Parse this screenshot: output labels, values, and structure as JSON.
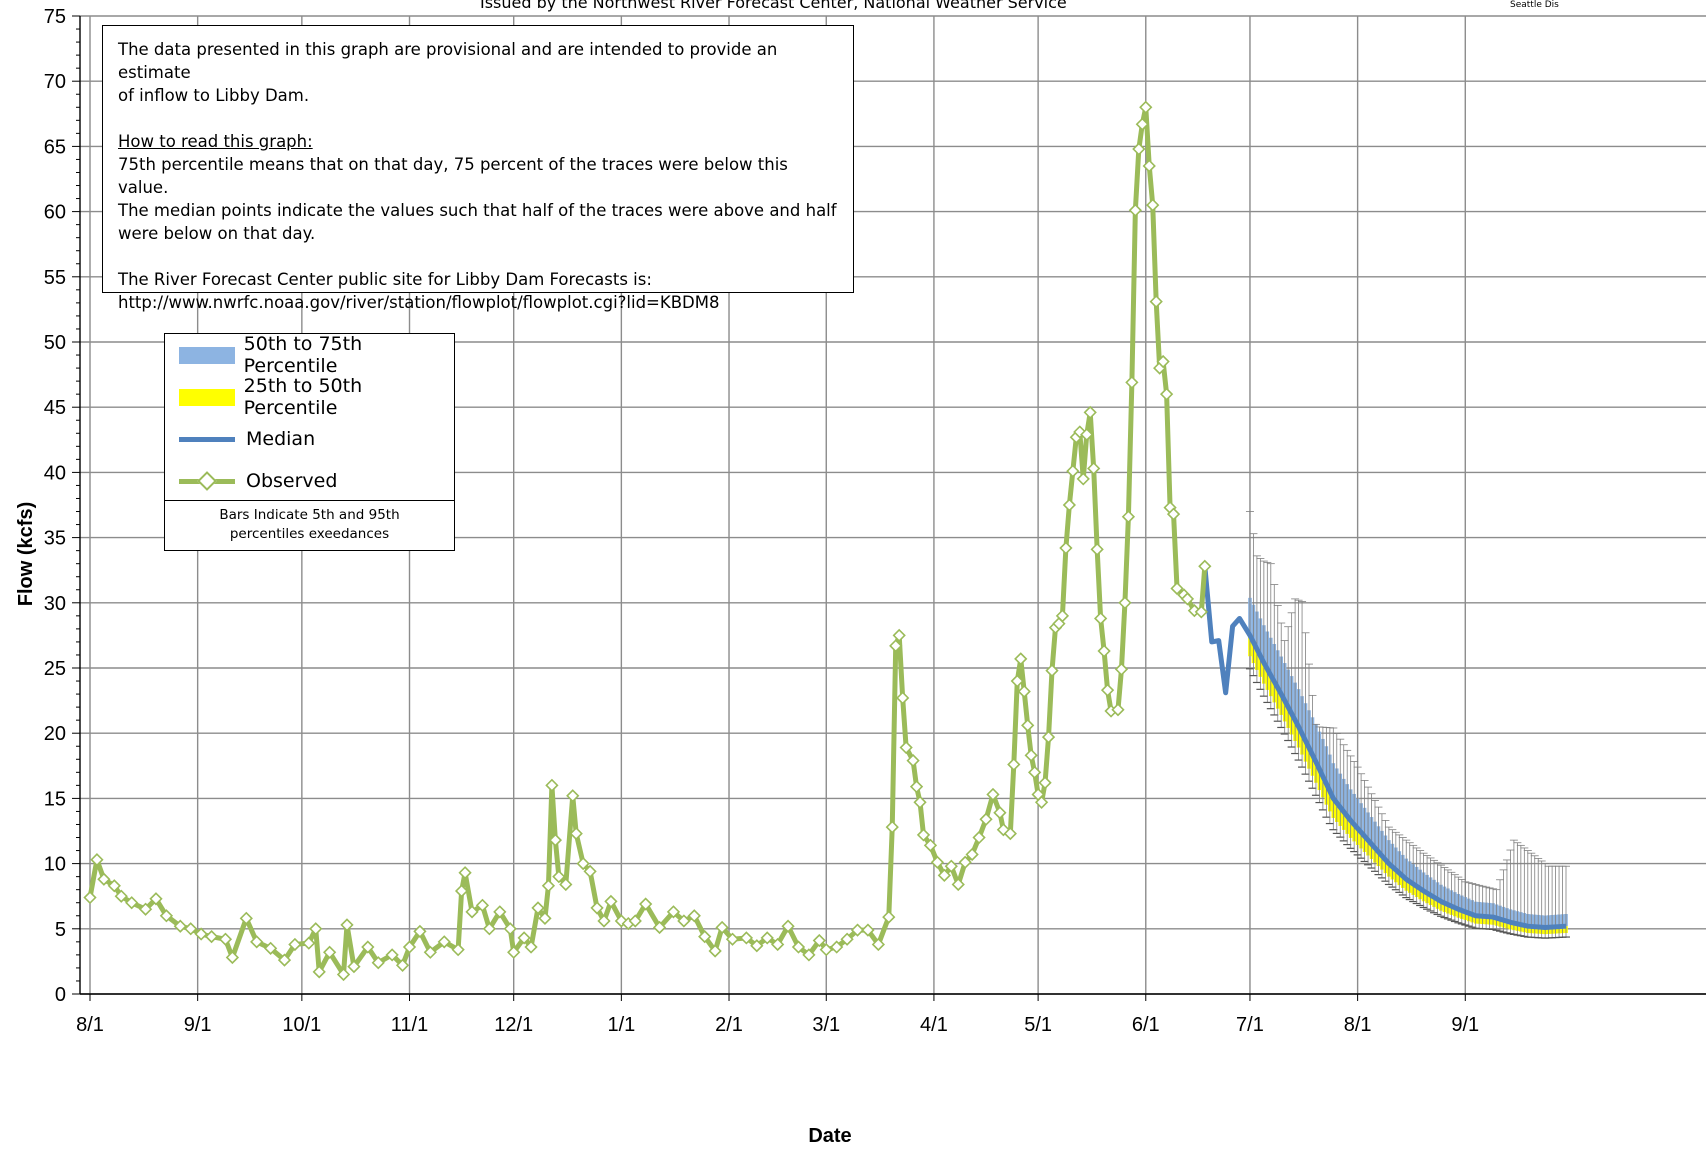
{
  "header": {
    "subtitle": "Issued by the Northwest River Forecast Center, National Weather Service",
    "corner": "Seattle Dis"
  },
  "note": {
    "line1": "The data presented in this graph are provisional and are intended to provide an estimate",
    "line2": "of inflow to Libby Dam.",
    "howto_heading": "How to read this graph:",
    "howto1": "75th percentile means that on that day, 75 percent of the traces were below this value.",
    "howto2": "The median points indicate the values such that half of  the traces were above and half",
    "howto3": "were below on that day.",
    "site1": "The River Forecast Center public site for Libby Dam Forecasts is:",
    "site2": "http://www.nwrfc.noaa.gov/river/station/flowplot/flowplot.cgi?lid=KBDM8"
  },
  "legend": {
    "items": [
      {
        "label": "50th to 75th Percentile"
      },
      {
        "label": "25th to 50th Percentile"
      },
      {
        "label": "Median"
      },
      {
        "label": "Observed"
      }
    ],
    "bars_note_1": "Bars Indicate 5th and 95th",
    "bars_note_2": "percentiles exeedances"
  },
  "colors": {
    "observed": "#9bbb59",
    "median": "#4f81bd",
    "band_upper": "#8db4e2",
    "band_lower": "#ffff00",
    "whisker": "#7f7f7f",
    "grid": "#8c8c8c"
  },
  "chart_data": {
    "type": "line",
    "xlabel": "Date",
    "ylabel": "Flow (kcfs)",
    "ylim": [
      0,
      75
    ],
    "yticks": [
      0,
      5,
      10,
      15,
      20,
      25,
      30,
      35,
      40,
      45,
      50,
      55,
      60,
      65,
      70,
      75
    ],
    "xtick_labels": [
      "8/1",
      "9/1",
      "10/1",
      "11/1",
      "12/1",
      "1/1",
      "2/1",
      "3/1",
      "4/1",
      "5/1",
      "6/1",
      "7/1",
      "8/1",
      "9/1"
    ],
    "grid": true,
    "observed": {
      "name": "Observed",
      "points": [
        [
          "8/1",
          7.4
        ],
        [
          "8/3",
          10.3
        ],
        [
          "8/5",
          8.8
        ],
        [
          "8/8",
          8.3
        ],
        [
          "8/10",
          7.5
        ],
        [
          "8/13",
          7.0
        ],
        [
          "8/17",
          6.5
        ],
        [
          "8/20",
          7.3
        ],
        [
          "8/23",
          6.0
        ],
        [
          "8/27",
          5.2
        ],
        [
          "8/30",
          5.0
        ],
        [
          "9/2",
          4.6
        ],
        [
          "9/5",
          4.4
        ],
        [
          "9/9",
          4.2
        ],
        [
          "9/11",
          2.8
        ],
        [
          "9/15",
          5.8
        ],
        [
          "9/18",
          4.0
        ],
        [
          "9/22",
          3.5
        ],
        [
          "9/26",
          2.6
        ],
        [
          "9/29",
          3.8
        ],
        [
          "10/3",
          3.9
        ],
        [
          "10/5",
          5.0
        ],
        [
          "10/6",
          1.7
        ],
        [
          "10/9",
          3.2
        ],
        [
          "10/13",
          1.5
        ],
        [
          "10/14",
          5.3
        ],
        [
          "10/16",
          2.1
        ],
        [
          "10/20",
          3.6
        ],
        [
          "10/23",
          2.4
        ],
        [
          "10/27",
          3.0
        ],
        [
          "10/30",
          2.2
        ],
        [
          "11/1",
          3.6
        ],
        [
          "11/4",
          4.8
        ],
        [
          "11/7",
          3.2
        ],
        [
          "11/11",
          4.0
        ],
        [
          "11/15",
          3.4
        ],
        [
          "11/16",
          7.9
        ],
        [
          "11/17",
          9.3
        ],
        [
          "11/19",
          6.3
        ],
        [
          "11/22",
          6.8
        ],
        [
          "11/24",
          5.0
        ],
        [
          "11/27",
          6.3
        ],
        [
          "11/30",
          5.0
        ],
        [
          "12/1",
          3.2
        ],
        [
          "12/4",
          4.3
        ],
        [
          "12/6",
          3.6
        ],
        [
          "12/8",
          6.6
        ],
        [
          "12/10",
          5.8
        ],
        [
          "12/11",
          8.3
        ],
        [
          "12/12",
          16.0
        ],
        [
          "12/13",
          11.8
        ],
        [
          "12/14",
          9.0
        ],
        [
          "12/16",
          8.4
        ],
        [
          "12/18",
          15.2
        ],
        [
          "12/19",
          12.3
        ],
        [
          "12/21",
          10.0
        ],
        [
          "12/23",
          9.4
        ],
        [
          "12/25",
          6.6
        ],
        [
          "12/27",
          5.6
        ],
        [
          "12/29",
          7.1
        ],
        [
          "1/1",
          5.6
        ],
        [
          "1/3",
          5.4
        ],
        [
          "1/5",
          5.6
        ],
        [
          "1/8",
          6.9
        ],
        [
          "1/12",
          5.1
        ],
        [
          "1/16",
          6.3
        ],
        [
          "1/19",
          5.6
        ],
        [
          "1/22",
          6.0
        ],
        [
          "1/25",
          4.4
        ],
        [
          "1/28",
          3.3
        ],
        [
          "1/30",
          5.1
        ],
        [
          "2/2",
          4.2
        ],
        [
          "2/6",
          4.3
        ],
        [
          "2/9",
          3.7
        ],
        [
          "2/12",
          4.3
        ],
        [
          "2/15",
          3.8
        ],
        [
          "2/18",
          5.2
        ],
        [
          "2/21",
          3.6
        ],
        [
          "2/24",
          3.0
        ],
        [
          "2/27",
          4.1
        ],
        [
          "3/1",
          3.4
        ],
        [
          "3/4",
          3.6
        ],
        [
          "3/7",
          4.2
        ],
        [
          "3/10",
          4.9
        ],
        [
          "3/13",
          4.9
        ],
        [
          "3/16",
          3.8
        ],
        [
          "3/19",
          5.9
        ],
        [
          "3/20",
          12.8
        ],
        [
          "3/21",
          26.7
        ],
        [
          "3/22",
          27.5
        ],
        [
          "3/23",
          22.7
        ],
        [
          "3/24",
          18.9
        ],
        [
          "3/26",
          17.9
        ],
        [
          "3/27",
          15.9
        ],
        [
          "3/28",
          14.7
        ],
        [
          "3/29",
          12.2
        ],
        [
          "3/31",
          11.4
        ],
        [
          "4/2",
          10.1
        ],
        [
          "4/4",
          9.1
        ],
        [
          "4/6",
          9.8
        ],
        [
          "4/8",
          8.4
        ],
        [
          "4/10",
          10.1
        ],
        [
          "4/12",
          10.7
        ],
        [
          "4/14",
          12.0
        ],
        [
          "4/16",
          13.4
        ],
        [
          "4/18",
          15.3
        ],
        [
          "4/20",
          13.9
        ],
        [
          "4/21",
          12.6
        ],
        [
          "4/23",
          12.3
        ],
        [
          "4/24",
          17.6
        ],
        [
          "4/25",
          24.0
        ],
        [
          "4/26",
          25.7
        ],
        [
          "4/27",
          23.2
        ],
        [
          "4/28",
          20.6
        ],
        [
          "4/29",
          18.3
        ],
        [
          "4/30",
          17.0
        ],
        [
          "5/1",
          15.3
        ],
        [
          "5/2",
          14.7
        ],
        [
          "5/3",
          16.2
        ],
        [
          "5/4",
          19.7
        ],
        [
          "5/5",
          24.8
        ],
        [
          "5/6",
          28.1
        ],
        [
          "5/7",
          28.4
        ],
        [
          "5/8",
          29.0
        ],
        [
          "5/9",
          34.2
        ],
        [
          "5/10",
          37.5
        ],
        [
          "5/11",
          40.1
        ],
        [
          "5/12",
          42.7
        ],
        [
          "5/13",
          43.1
        ],
        [
          "5/14",
          39.5
        ],
        [
          "5/15",
          42.9
        ],
        [
          "5/16",
          44.6
        ],
        [
          "5/17",
          40.3
        ],
        [
          "5/18",
          34.1
        ],
        [
          "5/19",
          28.8
        ],
        [
          "5/20",
          26.3
        ],
        [
          "5/21",
          23.3
        ],
        [
          "5/22",
          21.7
        ],
        [
          "5/24",
          21.8
        ],
        [
          "5/25",
          24.9
        ],
        [
          "5/26",
          30.0
        ],
        [
          "5/27",
          36.6
        ],
        [
          "5/28",
          46.9
        ],
        [
          "5/29",
          60.1
        ],
        [
          "5/30",
          64.8
        ],
        [
          "5/31",
          66.7
        ],
        [
          "6/1",
          68.0
        ],
        [
          "6/2",
          63.5
        ],
        [
          "6/3",
          60.5
        ],
        [
          "6/4",
          53.1
        ],
        [
          "6/5",
          48.0
        ],
        [
          "6/6",
          48.5
        ],
        [
          "6/7",
          46.0
        ],
        [
          "6/8",
          37.3
        ],
        [
          "6/9",
          36.8
        ],
        [
          "6/10",
          31.1
        ],
        [
          "6/12",
          30.6
        ],
        [
          "6/13",
          30.3
        ],
        [
          "6/15",
          29.4
        ],
        [
          "6/17",
          29.3
        ],
        [
          "6/18",
          32.8
        ]
      ]
    },
    "median": {
      "name": "Median",
      "points": [
        [
          "6/18",
          32.8
        ],
        [
          "6/20",
          27.0
        ],
        [
          "6/22",
          27.1
        ],
        [
          "6/24",
          23.1
        ],
        [
          "6/26",
          28.2
        ],
        [
          "6/28",
          28.8
        ],
        [
          "7/1",
          27.5
        ],
        [
          "7/5",
          25.4
        ],
        [
          "7/10",
          23.0
        ],
        [
          "7/15",
          20.5
        ],
        [
          "7/20",
          17.8
        ],
        [
          "7/25",
          15.0
        ],
        [
          "7/30",
          13.3
        ],
        [
          "8/5",
          11.5
        ],
        [
          "8/10",
          10.0
        ],
        [
          "8/15",
          8.8
        ],
        [
          "8/20",
          7.9
        ],
        [
          "8/25",
          7.1
        ],
        [
          "8/30",
          6.5
        ],
        [
          "9/4",
          6.0
        ],
        [
          "9/9",
          5.9
        ],
        [
          "9/14",
          5.5
        ],
        [
          "9/19",
          5.2
        ],
        [
          "9/24",
          5.1
        ],
        [
          "9/30",
          5.2
        ]
      ]
    },
    "bands": {
      "p75_minus_median": 1.8,
      "median_minus_p25": 1.0,
      "p95_peaks": [
        [
          "7/1",
          37.0
        ],
        [
          "7/3",
          33.6
        ],
        [
          "7/5",
          33.2
        ],
        [
          "7/7",
          33.0
        ],
        [
          "7/9",
          29.8
        ],
        [
          "7/11",
          27.1
        ],
        [
          "7/14",
          30.3
        ],
        [
          "7/16",
          30.1
        ],
        [
          "7/20",
          20.5
        ],
        [
          "7/25",
          20.4
        ],
        [
          "8/1",
          17.4
        ],
        [
          "8/10",
          12.8
        ],
        [
          "8/20",
          10.8
        ],
        [
          "9/1",
          8.6
        ],
        [
          "9/10",
          8.0
        ],
        [
          "9/15",
          11.8
        ],
        [
          "9/20",
          10.8
        ],
        [
          "9/25",
          9.8
        ],
        [
          "9/30",
          9.8
        ]
      ]
    }
  }
}
